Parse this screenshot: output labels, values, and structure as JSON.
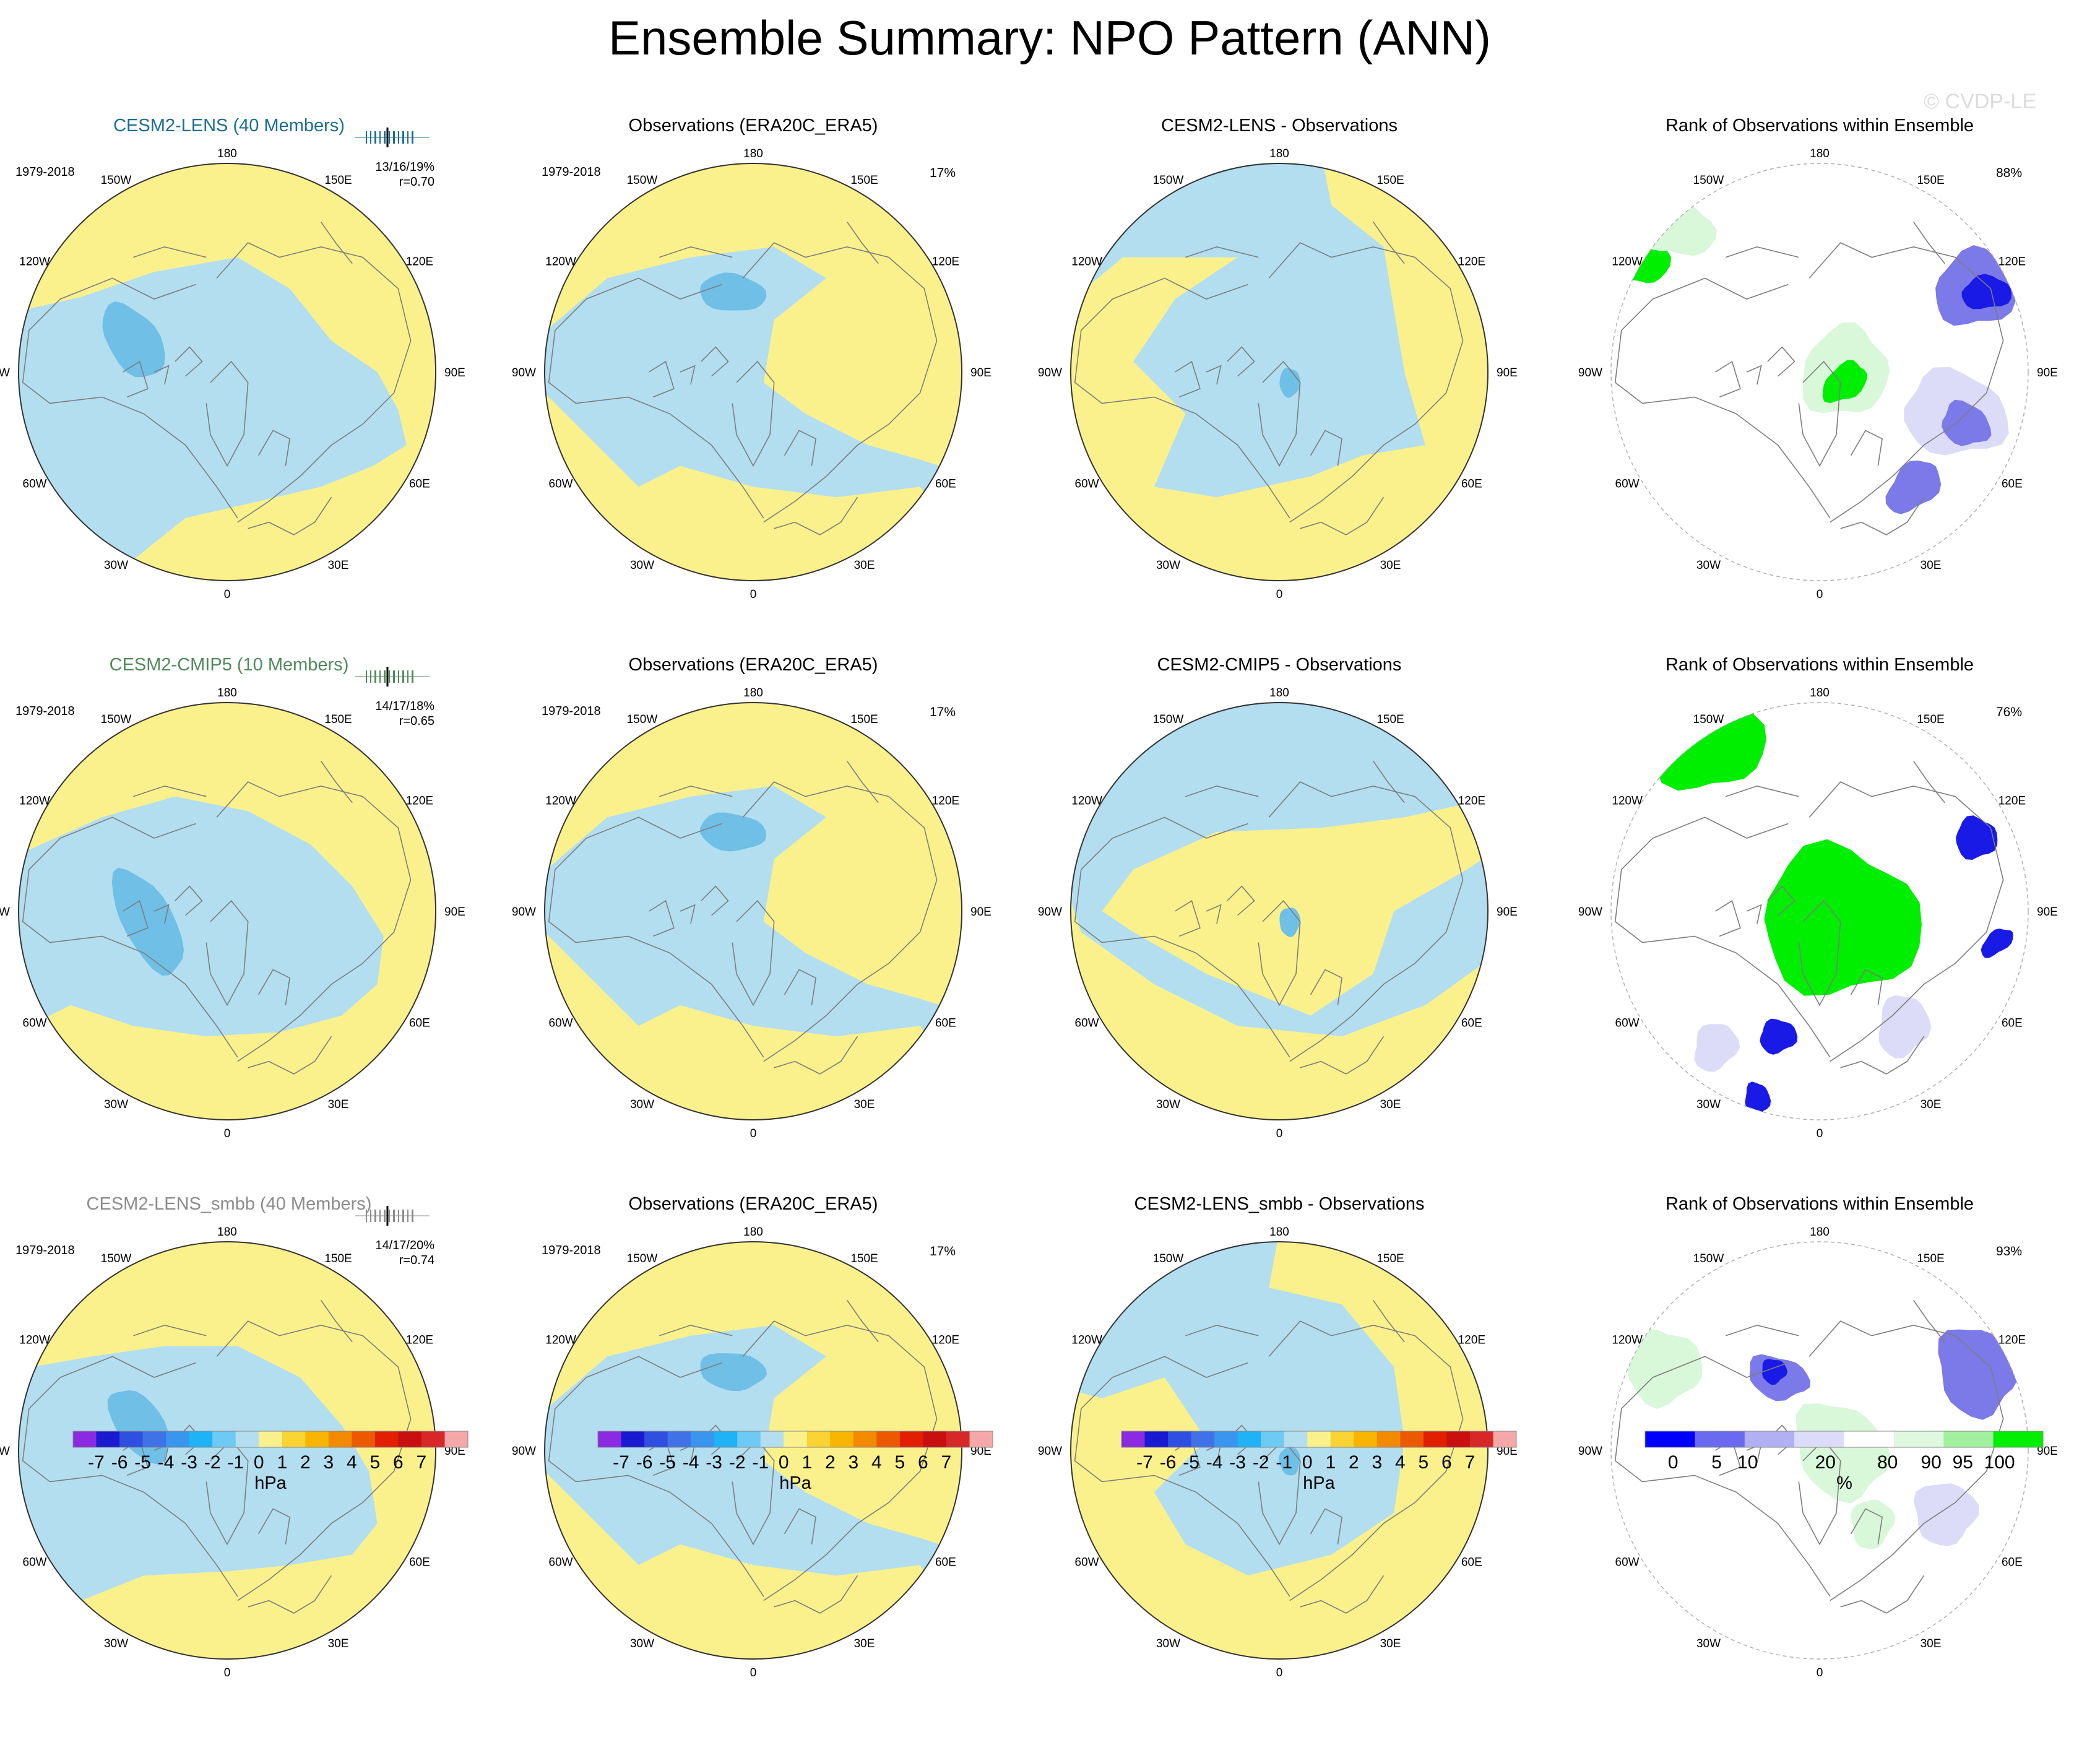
{
  "figure": {
    "title": "Ensemble Summary: NPO Pattern (ANN)",
    "watermark": "© CVDP-LE"
  },
  "colors": {
    "pos1": "#fbf18c",
    "neg1": "#b2def0",
    "neg2": "#6fbfe6",
    "neg3": "#3b8fd6",
    "rank_green": "#00ee00",
    "rank_green_mid": "#8fec8f",
    "rank_green_light": "#d9f7d9",
    "rank_blue": "#1a1ae6",
    "rank_blue_mid": "#7b7ae8",
    "rank_blue_light": "#dcdcf8",
    "coast": "#7d7d7d",
    "ens_row1": "#1b6e92",
    "ens_row2": "#4f8a5b",
    "ens_row3": "#8b8b8b"
  },
  "lon_labels": [
    "180",
    "150E",
    "120E",
    "90E",
    "60E",
    "30E",
    "0",
    "30W",
    "60W",
    "90W",
    "120W",
    "150W"
  ],
  "rows": [
    {
      "panels": [
        {
          "title": "CESM2-LENS (40 Members)",
          "period": "1979-2018",
          "stats": "13/16/19%",
          "corr": "r=0.70"
        },
        {
          "title": "Observations (ERA20C_ERA5)",
          "period": "1979-2018",
          "pct": "17%"
        },
        {
          "title": "CESM2-LENS - Observations"
        },
        {
          "title": "Rank of Observations within Ensemble",
          "pct": "88%"
        }
      ]
    },
    {
      "panels": [
        {
          "title": "CESM2-CMIP5 (10 Members)",
          "period": "1979-2018",
          "stats": "14/17/18%",
          "corr": "r=0.65"
        },
        {
          "title": "Observations (ERA20C_ERA5)",
          "period": "1979-2018",
          "pct": "17%"
        },
        {
          "title": "CESM2-CMIP5 - Observations"
        },
        {
          "title": "Rank of Observations within Ensemble",
          "pct": "76%"
        }
      ]
    },
    {
      "panels": [
        {
          "title": "CESM2-LENS_smbb (40 Members)",
          "period": "1979-2018",
          "stats": "14/17/20%",
          "corr": "r=0.74"
        },
        {
          "title": "Observations (ERA20C_ERA5)",
          "period": "1979-2018",
          "pct": "17%"
        },
        {
          "title": "CESM2-LENS_smbb - Observations"
        },
        {
          "title": "Rank of Observations within Ensemble",
          "pct": "93%"
        }
      ]
    }
  ],
  "colorbar_hpa": {
    "ticks": [
      "-7",
      "-6",
      "-5",
      "-4",
      "-3",
      "-2",
      "-1",
      "0",
      "1",
      "2",
      "3",
      "4",
      "5",
      "6",
      "7"
    ],
    "colors": [
      "#8a2be2",
      "#1a1ad0",
      "#2f4fe0",
      "#3f72e6",
      "#3a95ee",
      "#1fb2f5",
      "#6dcaf5",
      "#b2def0",
      "#fbf18c",
      "#f9d233",
      "#f7b400",
      "#f28a00",
      "#ec5a00",
      "#e02000",
      "#c81010",
      "#d62828",
      "#f5a8a8"
    ],
    "unit": "hPa"
  },
  "colorbar_rank": {
    "ticks": [
      "0",
      "5",
      "10",
      "20",
      "80",
      "90",
      "95",
      "100"
    ],
    "colors": [
      "#0000ff",
      "#6a6af0",
      "#b0b0f2",
      "#dcdcf8",
      "#ffffff",
      "#e0f8e0",
      "#a0f0a0",
      "#00ee00"
    ],
    "unit": "%"
  },
  "chart_data": [
    {
      "type": "heatmap",
      "description": "3x4 grid of polar-stereographic maps of the NPO pattern; columns: model ensemble mean, observations, model minus observations, rank of observations within ensemble",
      "value_field": "sea level pressure pattern",
      "units": "hPa",
      "contour_levels": [
        -7,
        -6,
        -5,
        -4,
        -3,
        -2,
        -1,
        0,
        1,
        2,
        3,
        4,
        5,
        6,
        7
      ],
      "rank_units": "%",
      "rank_levels": [
        0,
        5,
        10,
        20,
        80,
        90,
        95,
        100
      ],
      "summary": [
        {
          "row": "CESM2-LENS (40 Members)",
          "variance_stats": "13/16/19%",
          "pattern_correlation": 0.7,
          "obs_variance": "17%",
          "rank_area": "88%"
        },
        {
          "row": "CESM2-CMIP5 (10 Members)",
          "variance_stats": "14/17/18%",
          "pattern_correlation": 0.65,
          "obs_variance": "17%",
          "rank_area": "76%"
        },
        {
          "row": "CESM2-LENS_smbb (40 Members)",
          "variance_stats": "14/17/20%",
          "pattern_correlation": 0.74,
          "obs_variance": "17%",
          "rank_area": "93%"
        }
      ]
    }
  ]
}
